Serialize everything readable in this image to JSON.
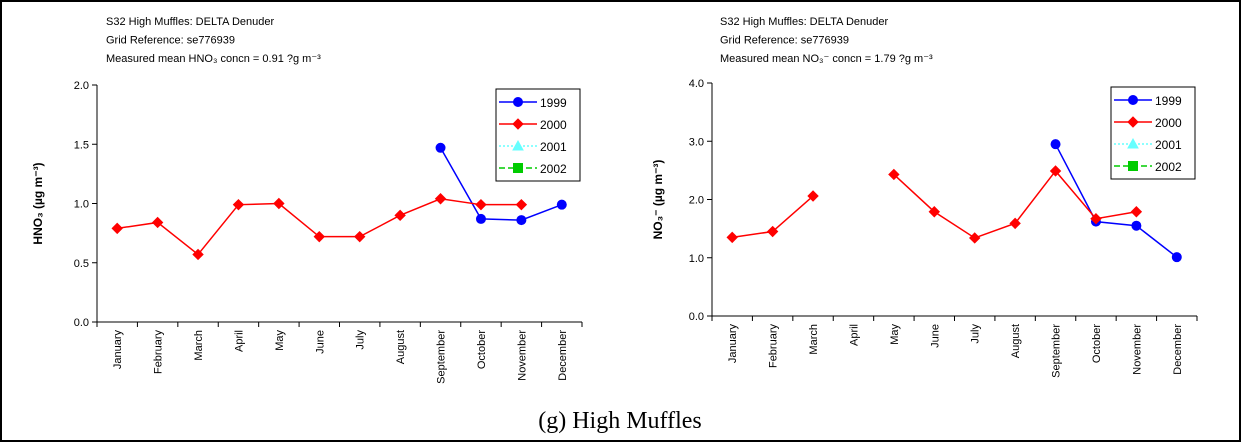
{
  "chart_data": [
    {
      "type": "line",
      "subtitle_lines": [
        "S32 High Muffles: DELTA Denuder",
        "Grid Reference: se776939",
        "Measured mean HNO₃ concn = 0.91 ?g m⁻³"
      ],
      "y_label": "HNO₃ (µg m⁻³)",
      "categories": [
        "January",
        "February",
        "March",
        "April",
        "May",
        "June",
        "July",
        "August",
        "September",
        "October",
        "November",
        "December"
      ],
      "series": [
        {
          "name": "1999",
          "color": "#0000ff",
          "marker": "circle",
          "dash": "solid",
          "values": [
            null,
            null,
            null,
            null,
            null,
            null,
            null,
            null,
            1.47,
            0.87,
            0.86,
            0.99
          ]
        },
        {
          "name": "2000",
          "color": "#ff0000",
          "marker": "diamond",
          "dash": "solid",
          "values": [
            0.79,
            0.84,
            0.57,
            0.99,
            1.0,
            0.72,
            0.72,
            0.9,
            1.04,
            0.99,
            0.99,
            null
          ]
        },
        {
          "name": "2001",
          "color": "#66ffff",
          "marker": "triangle",
          "dash": "dotted",
          "values": [
            null,
            null,
            null,
            null,
            null,
            null,
            null,
            null,
            null,
            null,
            null,
            null
          ]
        },
        {
          "name": "2002",
          "color": "#00cc00",
          "marker": "square",
          "dash": "dashed",
          "values": [
            null,
            null,
            null,
            null,
            null,
            null,
            null,
            null,
            null,
            null,
            null,
            null
          ]
        }
      ],
      "ylim": [
        0,
        2
      ],
      "yticks": [
        {
          "value": 0,
          "label": "0.0"
        },
        0.5,
        {
          "value": 1,
          "label": "1.0"
        },
        1.5,
        {
          "value": 2,
          "label": "2.0"
        }
      ],
      "legend": "upper right"
    },
    {
      "type": "line",
      "subtitle_lines": [
        "S32 High Muffles: DELTA Denuder",
        "Grid Reference: se776939",
        "Measured mean NO₃⁻ concn = 1.79 ?g m⁻³"
      ],
      "y_label": "NO₃⁻ (µg m⁻³)",
      "categories": [
        "January",
        "February",
        "March",
        "April",
        "May",
        "June",
        "July",
        "August",
        "September",
        "October",
        "November",
        "December"
      ],
      "series": [
        {
          "name": "1999",
          "color": "#0000ff",
          "marker": "circle",
          "dash": "solid",
          "values": [
            null,
            null,
            null,
            null,
            null,
            null,
            null,
            null,
            2.95,
            1.62,
            1.55,
            1.01
          ]
        },
        {
          "name": "2000",
          "color": "#ff0000",
          "marker": "diamond",
          "dash": "solid",
          "values": [
            1.35,
            1.45,
            2.06,
            null,
            2.43,
            1.79,
            1.34,
            1.59,
            2.49,
            1.67,
            1.79,
            null
          ]
        },
        {
          "name": "2001",
          "color": "#66ffff",
          "marker": "triangle",
          "dash": "dotted",
          "values": [
            null,
            null,
            null,
            null,
            null,
            null,
            null,
            null,
            null,
            null,
            null,
            null
          ]
        },
        {
          "name": "2002",
          "color": "#00cc00",
          "marker": "square",
          "dash": "dashed",
          "values": [
            null,
            null,
            null,
            null,
            null,
            null,
            null,
            null,
            null,
            null,
            null,
            null
          ]
        }
      ],
      "ylim": [
        0,
        4
      ],
      "yticks": [
        {
          "value": 0,
          "label": "0.0"
        },
        {
          "value": 1,
          "label": "1.0"
        },
        {
          "value": 2,
          "label": "2.0"
        },
        {
          "value": 3,
          "label": "3.0"
        },
        {
          "value": 4,
          "label": "4.0"
        }
      ],
      "legend": "upper right"
    }
  ],
  "caption": "(g)  High Muffles"
}
